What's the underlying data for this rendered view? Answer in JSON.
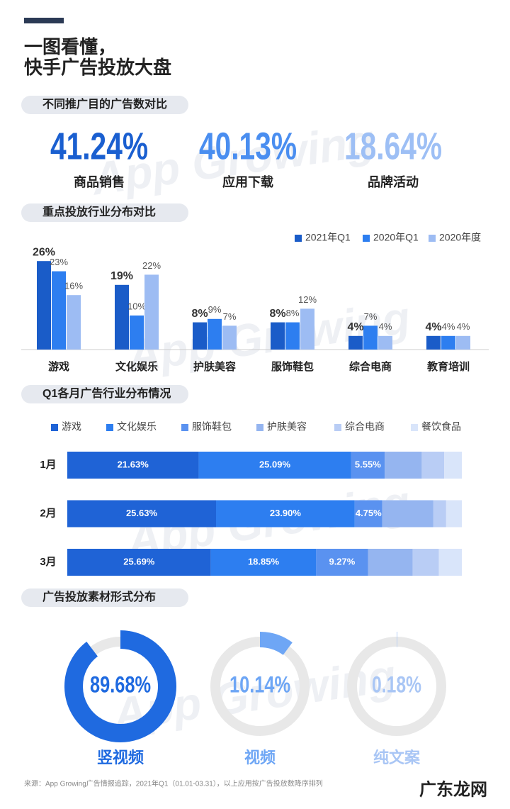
{
  "title_lines": [
    "一图看懂，",
    "快手广告投放大盘"
  ],
  "watermark": "App Growing",
  "chart_data": [
    {
      "type": "stat",
      "title": "不同推广目的广告数对比",
      "categories": [
        "商品销售",
        "应用下载",
        "品牌活动"
      ],
      "values": [
        41.24,
        40.13,
        18.64
      ],
      "value_labels": [
        "41.24%",
        "40.13%",
        "18.64%"
      ],
      "colors": [
        "#1a5fd0",
        "#4a8ef0",
        "#9dbff5"
      ]
    },
    {
      "type": "bar",
      "title": "重点投放行业分布对比",
      "categories": [
        "游戏",
        "文化娱乐",
        "护肤美容",
        "服饰鞋包",
        "综合电商",
        "教育培训"
      ],
      "ylim": [
        0,
        30
      ],
      "legend": "top-right",
      "series": [
        {
          "name": "2021年Q1",
          "color": "#1a5cc8",
          "values": [
            26,
            19,
            8,
            8,
            4,
            4
          ],
          "value_labels": [
            "26%",
            "19%",
            "8%",
            "8%",
            "4%",
            "4%"
          ]
        },
        {
          "name": "2020年Q1",
          "color": "#2d7ef0",
          "values": [
            23,
            10,
            9,
            8,
            7,
            4
          ],
          "value_labels": [
            "23%",
            "10%",
            "9%",
            "8%",
            "7%",
            "4%"
          ]
        },
        {
          "name": "2020年度",
          "color": "#9dbcf3",
          "values": [
            16,
            22,
            7,
            12,
            4,
            4
          ],
          "value_labels": [
            "16%",
            "22%",
            "7%",
            "12%",
            "4%",
            "4%"
          ]
        }
      ]
    },
    {
      "type": "stacked-barh",
      "title": "Q1各月广告行业分布情况",
      "categories": [
        "1月",
        "2月",
        "3月"
      ],
      "legend": "top",
      "series": [
        {
          "name": "游戏",
          "color": "#1f63d6",
          "values": [
            21.63,
            25.63,
            25.69
          ],
          "value_labels": [
            "21.63%",
            "25.63%",
            "25.69%"
          ]
        },
        {
          "name": "文化娱乐",
          "color": "#2d7ef0",
          "values": [
            25.09,
            23.9,
            18.85
          ],
          "value_labels": [
            "25.09%",
            "23.90%",
            "18.85%"
          ]
        },
        {
          "name": "服饰鞋包",
          "color": "#5a92f0",
          "values": [
            5.55,
            4.75,
            9.27
          ],
          "value_labels": [
            "5.55%",
            "4.75%",
            "9.27%"
          ]
        },
        {
          "name": "护肤美容",
          "color": "#95b5f0",
          "values": [
            6.1,
            8.8,
            8.0
          ]
        },
        {
          "name": "综合电商",
          "color": "#b9cdf5",
          "values": [
            3.7,
            2.2,
            4.7
          ]
        },
        {
          "name": "餐饮食品",
          "color": "#d9e5fa",
          "values": [
            2.9,
            2.7,
            4.1
          ]
        }
      ]
    },
    {
      "type": "donut",
      "title": "广告投放素材形式分布",
      "categories": [
        "竖视频",
        "视频",
        "纯文案"
      ],
      "values": [
        89.68,
        10.14,
        0.18
      ],
      "value_labels": [
        "89.68%",
        "10.14%",
        "0.18%"
      ],
      "colors": [
        "#1f6ae0",
        "#6ea6f5",
        "#a9c6f5"
      ],
      "ylim": [
        0,
        100
      ]
    }
  ],
  "footer": "来源：App Growing广告情报追踪，2021年Q1（01.01-03.31），以上应用按广告投放数降序排列",
  "logo": "广东龙网"
}
